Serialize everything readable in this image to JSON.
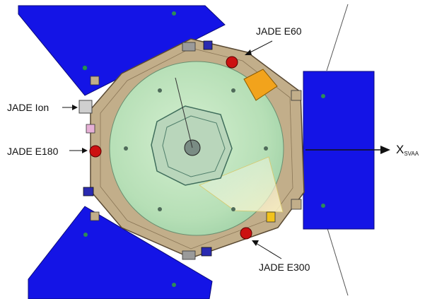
{
  "labels": {
    "jade_e60": "JADE E60",
    "jade_ion": "JADE Ion",
    "jade_e180": "JADE E180",
    "jade_e300": "JADE E300",
    "axis_main": "X",
    "axis_sub": "SVAA"
  },
  "colors": {
    "panel_blue": "#1414e6",
    "deck_tan": "#c2ae8a",
    "disc_green": "#b8e0b6",
    "sensor_red": "#cc1111",
    "accent_orange": "#f2a31c"
  },
  "icons": [
    "arrow-right-icon"
  ]
}
